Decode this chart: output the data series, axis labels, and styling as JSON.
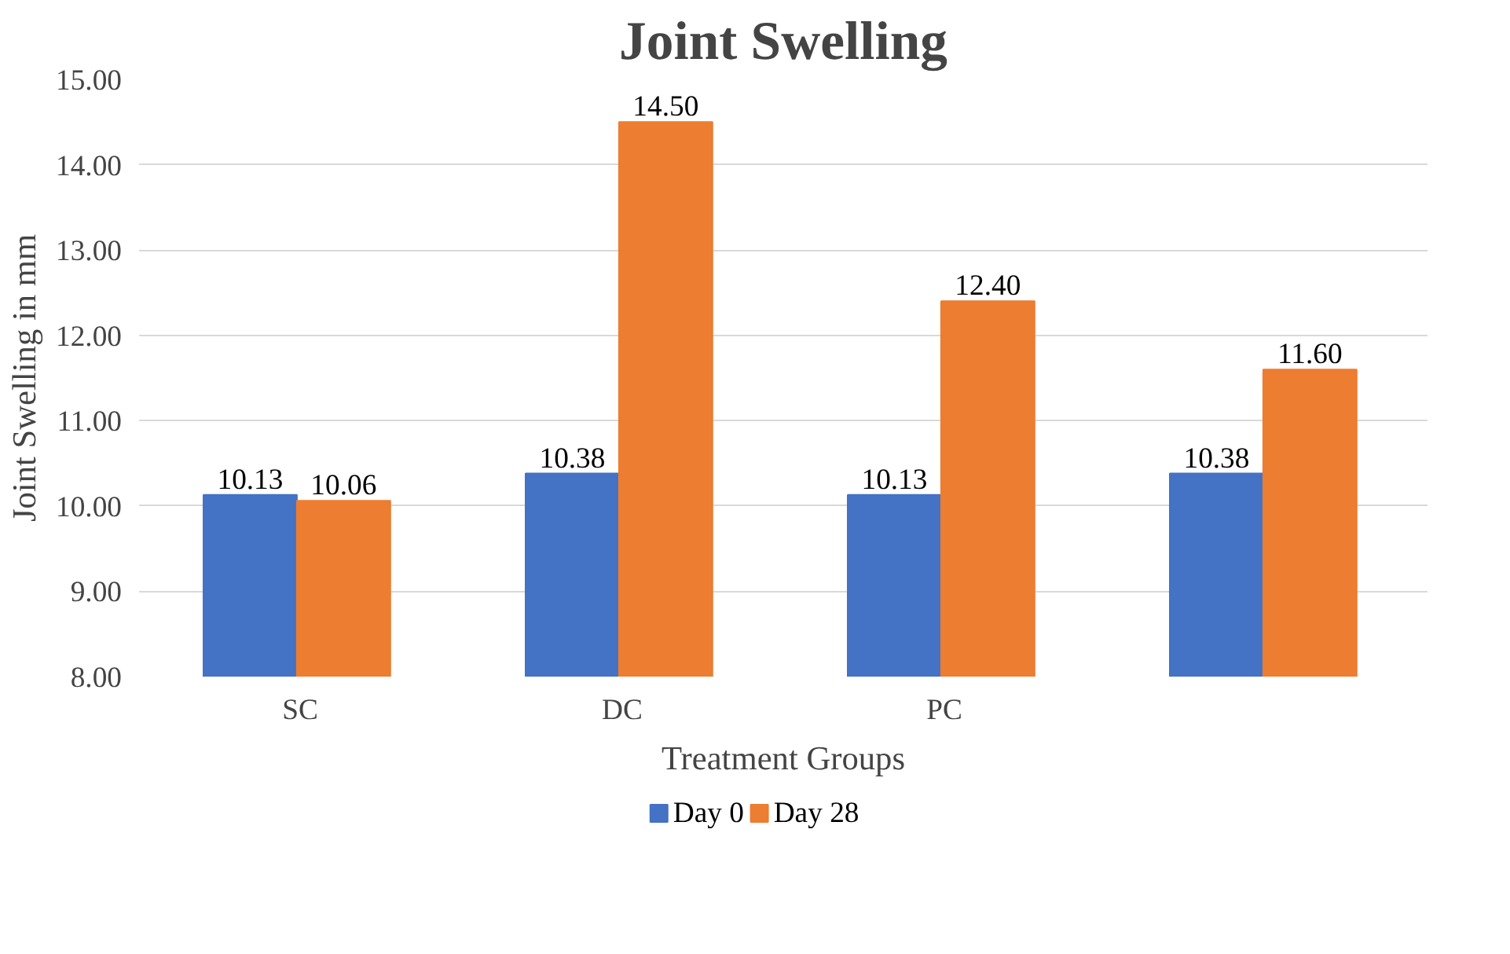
{
  "chart_data": {
    "type": "bar",
    "title": "Joint Swelling",
    "xlabel": "Treatment Groups",
    "ylabel": "Joint Swelling in mm",
    "categories": [
      "SC",
      "DC",
      "PC",
      null
    ],
    "series": [
      {
        "name": "Day 0",
        "color": "#4472c4",
        "values": [
          10.13,
          10.38,
          10.13,
          10.38
        ],
        "value_labels": [
          "10.13",
          "10.38",
          "10.13",
          "10.38"
        ]
      },
      {
        "name": "Day 28",
        "color": "#ed7d31",
        "values": [
          10.06,
          14.5,
          12.4,
          11.6
        ],
        "value_labels": [
          "10.06",
          "14.50",
          "12.40",
          "11.60"
        ]
      }
    ],
    "ylim": [
      8,
      15
    ],
    "yticks": [
      {
        "value": 8,
        "label": "8.00"
      },
      {
        "value": 9,
        "label": "9.00"
      },
      {
        "value": 10,
        "label": "10.00"
      },
      {
        "value": 11,
        "label": "11.00"
      },
      {
        "value": 12,
        "label": "12.00"
      },
      {
        "value": 13,
        "label": "13.00"
      },
      {
        "value": 14,
        "label": "14.00"
      },
      {
        "value": 15,
        "label": "15.00"
      }
    ],
    "grid": "y",
    "legend": "bottom"
  }
}
